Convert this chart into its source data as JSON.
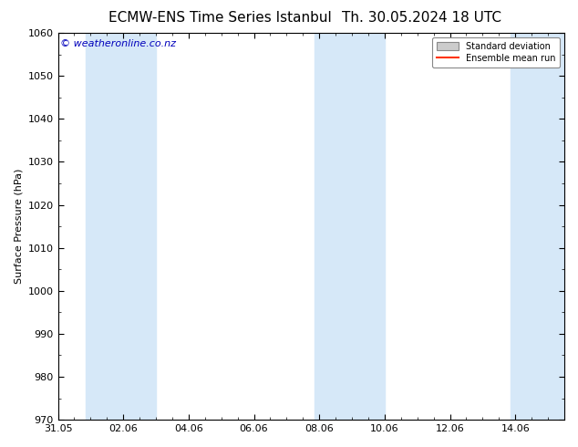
{
  "title_left": "ECMW-ENS Time Series Istanbul",
  "title_right": "Th. 30.05.2024 18 UTC",
  "ylabel": "Surface Pressure (hPa)",
  "xlabel": "",
  "ylim": [
    970,
    1060
  ],
  "yticks": [
    970,
    980,
    990,
    1000,
    1010,
    1020,
    1030,
    1040,
    1050,
    1060
  ],
  "xtick_labels": [
    "31.05",
    "02.06",
    "04.06",
    "06.06",
    "08.06",
    "10.06",
    "12.06",
    "14.06"
  ],
  "xtick_positions": [
    0,
    2,
    4,
    6,
    8,
    10,
    12,
    14
  ],
  "xlim": [
    0,
    15.5
  ],
  "shaded_bands": [
    {
      "x_start": 0.85,
      "x_end": 3.0
    },
    {
      "x_start": 7.85,
      "x_end": 10.0
    },
    {
      "x_start": 13.85,
      "x_end": 15.5
    }
  ],
  "shade_color": "#d6e8f8",
  "shade_alpha": 1.0,
  "background_color": "#ffffff",
  "watermark_text": "© weatheronline.co.nz",
  "watermark_color": "#0000bb",
  "legend_std_label": "Standard deviation",
  "legend_ens_label": "Ensemble mean run",
  "legend_ens_color": "#ff3300",
  "legend_std_facecolor": "#cccccc",
  "title_fontsize": 11,
  "axis_fontsize": 8,
  "tick_fontsize": 8,
  "watermark_fontsize": 8,
  "legend_fontsize": 7
}
